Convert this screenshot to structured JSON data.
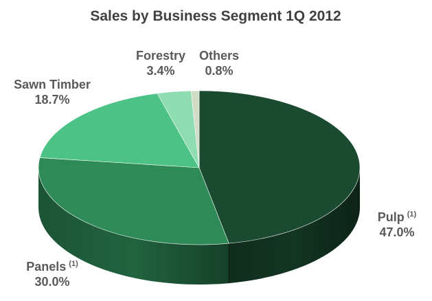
{
  "chart_data": {
    "type": "pie",
    "title": "Sales by Business Segment 1Q 2012",
    "unit": "%",
    "slices": [
      {
        "name": "Pulp",
        "note": "(1)",
        "value": 47.0,
        "value_label": "47.0%",
        "color": "#1a4a30"
      },
      {
        "name": "Panels",
        "note": "(1)",
        "value": 30.0,
        "value_label": "30.0%",
        "color": "#2e8a57"
      },
      {
        "name": "Sawn Timber",
        "note": "",
        "value": 18.7,
        "value_label": "18.7%",
        "color": "#4cc286"
      },
      {
        "name": "Forestry",
        "note": "",
        "value": 3.4,
        "value_label": "3.4%",
        "color": "#8fdcb2"
      },
      {
        "name": "Others",
        "note": "",
        "value": 0.8,
        "value_label": "0.8%",
        "color": "#d2dcc4"
      }
    ],
    "style": "3d-pie",
    "legend": "none"
  }
}
